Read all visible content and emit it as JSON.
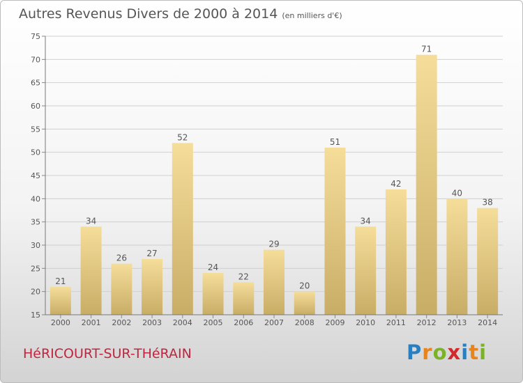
{
  "header": {
    "title": "Autres Revenus Divers de 2000 à 2014",
    "subtitle": "(en milliers d'€)"
  },
  "footer": {
    "town": "HéRICOURT-SUR-THéRAIN",
    "logo_letters": [
      "P",
      "r",
      "o",
      "x",
      "i",
      "t",
      "i"
    ],
    "logo_colors": [
      "#2a7fc1",
      "#e8841e",
      "#7bb228",
      "#d22a2a",
      "#2a7fc1",
      "#e8841e",
      "#7bb228"
    ]
  },
  "chart_data": {
    "type": "bar",
    "title": "Autres Revenus Divers de 2000 à 2014",
    "subtitle": "(en milliers d'€)",
    "categories": [
      "2000",
      "2001",
      "2002",
      "2003",
      "2004",
      "2005",
      "2006",
      "2007",
      "2008",
      "2009",
      "2010",
      "2011",
      "2012",
      "2013",
      "2014"
    ],
    "values": [
      21,
      34,
      26,
      27,
      52,
      24,
      22,
      29,
      20,
      51,
      34,
      42,
      71,
      40,
      38
    ],
    "ylim": [
      15,
      75
    ],
    "yticks": [
      15,
      20,
      25,
      30,
      35,
      40,
      45,
      50,
      55,
      60,
      65,
      70,
      75
    ],
    "grid": true,
    "bar_color_light": "#f5dd9a",
    "bar_color_dark": "#c8ad66"
  }
}
